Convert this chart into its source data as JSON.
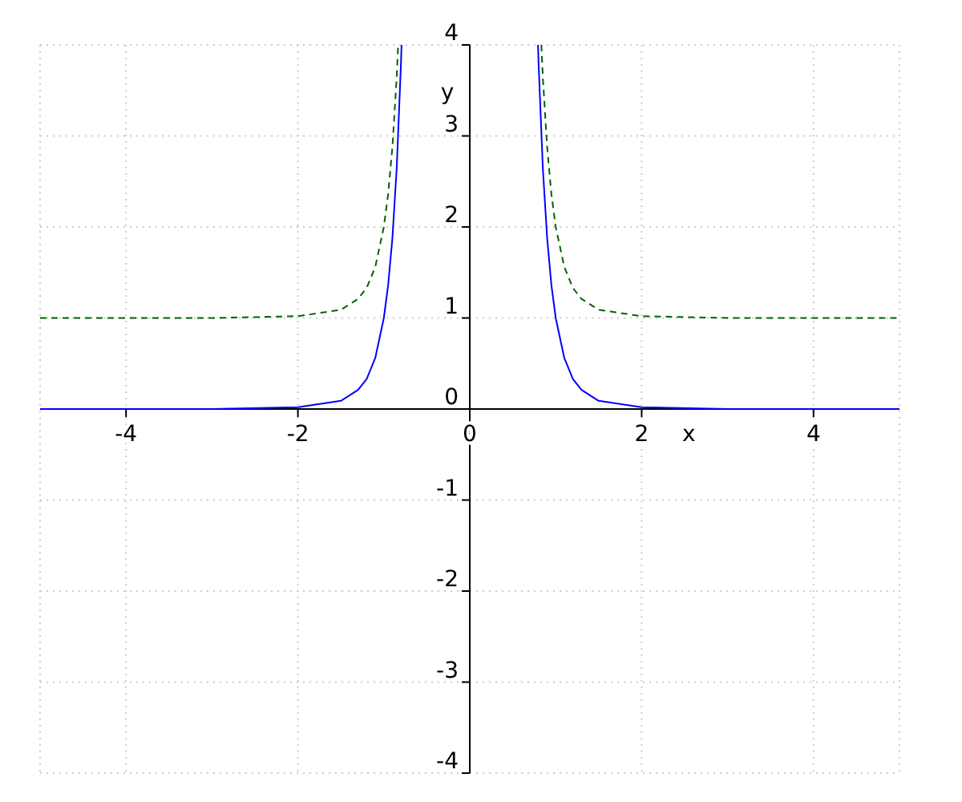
{
  "chart_data": {
    "type": "line",
    "xlabel": "x",
    "ylabel": "y",
    "xlim": [
      -5,
      5
    ],
    "ylim": [
      -4,
      4
    ],
    "xticks": [
      -4,
      -2,
      0,
      2,
      4
    ],
    "yticks": [
      -4,
      -3,
      -2,
      -1,
      0,
      1,
      2,
      3,
      4
    ],
    "grid": true,
    "series": [
      {
        "color": "#0000ff",
        "line_style": "solid",
        "x": [
          -5,
          -3,
          -2,
          -1.5,
          -1.3,
          -1.2,
          -1.1,
          -1,
          -0.95,
          -0.9,
          -0.85,
          -0.8,
          -0.794,
          0,
          0.794,
          0.8,
          0.85,
          0.9,
          0.95,
          1,
          1.1,
          1.2,
          1.3,
          1.5,
          2,
          3,
          5
        ],
        "values": [
          0,
          0,
          0.02,
          0.09,
          0.21,
          0.33,
          0.56,
          1,
          1.36,
          1.88,
          2.65,
          3.81,
          4,
          null,
          4,
          3.81,
          2.65,
          1.88,
          1.36,
          1,
          0.56,
          0.33,
          0.21,
          0.09,
          0.02,
          0,
          0
        ]
      },
      {
        "color": "#006400",
        "line_style": "dashed",
        "x": [
          -5,
          -3,
          -2,
          -1.5,
          -1.3,
          -1.2,
          -1.1,
          -1,
          -0.95,
          -0.9,
          -0.85,
          -0.833,
          0,
          0.833,
          0.85,
          0.9,
          0.95,
          1,
          1.1,
          1.2,
          1.3,
          1.5,
          2,
          3,
          5
        ],
        "values": [
          1,
          1,
          1.02,
          1.09,
          1.21,
          1.33,
          1.56,
          2,
          2.36,
          2.88,
          3.65,
          4,
          null,
          4,
          3.65,
          2.88,
          2.36,
          2,
          1.56,
          1.33,
          1.21,
          1.09,
          1.02,
          1,
          1
        ]
      }
    ]
  }
}
